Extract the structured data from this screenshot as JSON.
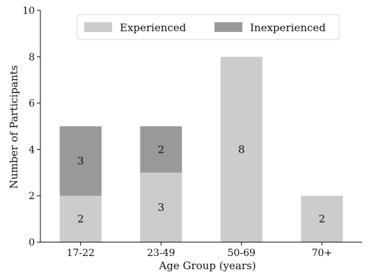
{
  "chart_data": {
    "type": "bar",
    "stacked": true,
    "categories": [
      "17-22",
      "23-49",
      "50-69",
      "70+"
    ],
    "series": [
      {
        "name": "Experienced",
        "values": [
          2,
          3,
          8,
          2
        ],
        "color": "#cccccc"
      },
      {
        "name": "Inexperienced",
        "values": [
          3,
          2,
          0,
          0
        ],
        "color": "#999999"
      }
    ],
    "xlabel": "Age Group (years)",
    "ylabel": "Number of Participants",
    "ylim": [
      0,
      10
    ],
    "yticks": [
      0,
      2,
      4,
      6,
      8,
      10
    ],
    "grid": false,
    "legend": {
      "placement": "top-center",
      "columns": 2
    },
    "data_labels": true
  }
}
